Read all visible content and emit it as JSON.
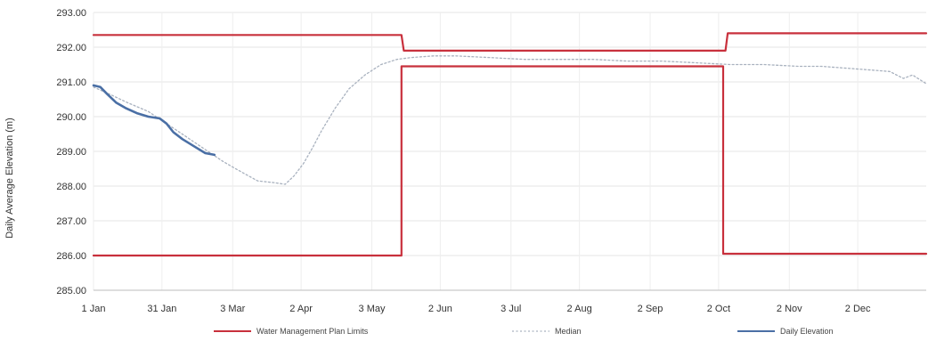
{
  "chart_data": {
    "type": "line",
    "title": "",
    "xlabel": "",
    "ylabel": "Daily Average Elevation (m)",
    "ylim": [
      285,
      293
    ],
    "xlim_days": [
      1,
      366
    ],
    "y_ticks": [
      "285.00",
      "286.00",
      "287.00",
      "288.00",
      "289.00",
      "290.00",
      "291.00",
      "292.00",
      "293.00"
    ],
    "x_ticks": [
      {
        "label": "1 Jan",
        "day": 1
      },
      {
        "label": "31 Jan",
        "day": 31
      },
      {
        "label": "3 Mar",
        "day": 62
      },
      {
        "label": "2 Apr",
        "day": 92
      },
      {
        "label": "3 May",
        "day": 123
      },
      {
        "label": "2 Jun",
        "day": 153
      },
      {
        "label": "3 Jul",
        "day": 184
      },
      {
        "label": "2 Aug",
        "day": 214
      },
      {
        "label": "2 Sep",
        "day": 245
      },
      {
        "label": "2 Oct",
        "day": 275
      },
      {
        "label": "2 Nov",
        "day": 306
      },
      {
        "label": "2 Dec",
        "day": 336
      }
    ],
    "grid": true,
    "legend_position": "bottom",
    "series": [
      {
        "name": "Water Management Plan Limits",
        "color": "#c8303c",
        "style": "solid",
        "segments": [
          {
            "x": [
              1,
              136,
              137,
              278,
              279,
              366
            ],
            "y": [
              292.35,
              292.35,
              291.9,
              291.9,
              292.4,
              292.4
            ]
          },
          {
            "x": [
              1,
              136,
              136,
              277,
              277,
              366
            ],
            "y": [
              286.0,
              286.0,
              291.45,
              291.45,
              286.05,
              286.05
            ]
          }
        ]
      },
      {
        "name": "Median",
        "color": "#a9b2bf",
        "style": "dotted",
        "segments": [
          {
            "x": [
              1,
              8,
              16,
              25,
              33,
              41,
              50,
              58,
              66,
              73,
              80,
              85,
              89,
              93,
              97,
              101,
              107,
              113,
              120,
              127,
              134,
              140,
              150,
              160,
              175,
              190,
              205,
              220,
              235,
              250,
              265,
              280,
              295,
              310,
              320,
              330,
              340,
              350,
              356,
              360,
              366
            ],
            "y": [
              290.85,
              290.65,
              290.4,
              290.15,
              289.8,
              289.45,
              289.05,
              288.7,
              288.4,
              288.15,
              288.1,
              288.05,
              288.3,
              288.65,
              289.1,
              289.6,
              290.25,
              290.8,
              291.2,
              291.5,
              291.65,
              291.7,
              291.75,
              291.75,
              291.7,
              291.65,
              291.65,
              291.65,
              291.6,
              291.6,
              291.55,
              291.5,
              291.5,
              291.45,
              291.45,
              291.4,
              291.35,
              291.3,
              291.1,
              291.2,
              290.95
            ]
          }
        ]
      },
      {
        "name": "Daily Elevation",
        "color": "#4a6fa5",
        "style": "solid",
        "segments": [
          {
            "x": [
              1,
              4,
              7,
              11,
              15,
              20,
              25,
              30,
              33,
              36,
              40,
              45,
              50,
              54
            ],
            "y": [
              290.9,
              290.85,
              290.65,
              290.4,
              290.25,
              290.1,
              290.0,
              289.95,
              289.8,
              289.55,
              289.35,
              289.15,
              288.95,
              288.9
            ]
          }
        ]
      }
    ]
  }
}
